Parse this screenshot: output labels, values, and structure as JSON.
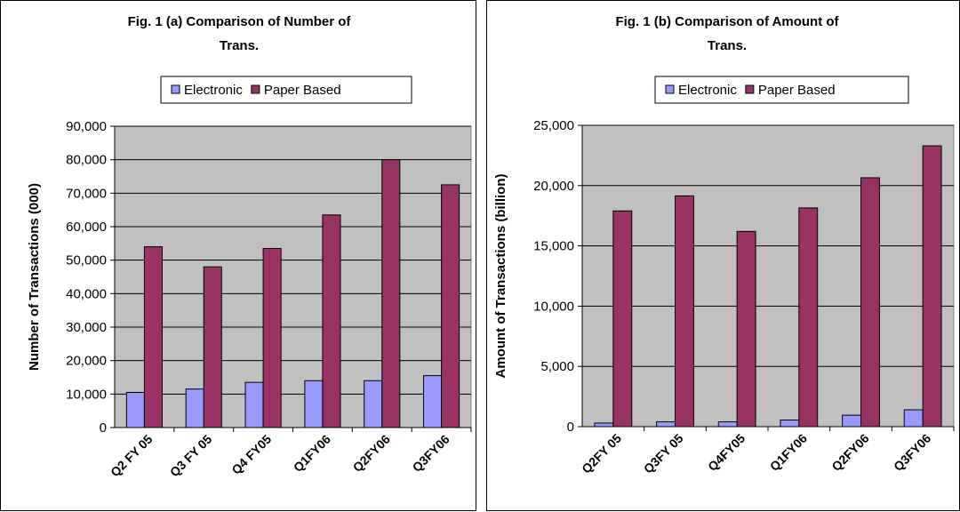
{
  "chart_data": [
    {
      "type": "bar",
      "title_lines": [
        "Fig. 1 (a) Comparison of Number of",
        "Trans."
      ],
      "xlabel": "",
      "ylabel": "Number of Transactions (000)",
      "categories": [
        "Q2 FY 05",
        "Q3 FY 05",
        "Q4 FY05",
        "Q1FY06",
        "Q2FY06",
        "Q3FY06"
      ],
      "series": [
        {
          "name": "Electronic",
          "color": "#9999ff",
          "values": [
            10500,
            11500,
            13500,
            14000,
            14000,
            15500
          ]
        },
        {
          "name": "Paper Based",
          "color": "#993366",
          "values": [
            54000,
            48000,
            53500,
            63500,
            80000,
            72500
          ]
        }
      ],
      "ylim": [
        0,
        90000
      ],
      "yticks": [
        0,
        10000,
        20000,
        30000,
        40000,
        50000,
        60000,
        70000,
        80000,
        90000
      ],
      "ytick_labels": [
        "0",
        "10,000",
        "20,000",
        "30,000",
        "40,000",
        "50,000",
        "60,000",
        "70,000",
        "80,000",
        "90,000"
      ],
      "grid": true,
      "legend": "top",
      "plot_bg": "#c0c0c0"
    },
    {
      "type": "bar",
      "title_lines": [
        "Fig. 1 (b) Comparison of Amount of",
        "Trans."
      ],
      "xlabel": "",
      "ylabel": "Amount of Transactions (billion)",
      "categories": [
        "Q2FY 05",
        "Q3FY 05",
        "Q4FY05",
        "Q1FY06",
        "Q2FY06",
        "Q3FY06"
      ],
      "series": [
        {
          "name": "Electronic",
          "color": "#9999ff",
          "values": [
            300,
            400,
            400,
            550,
            950,
            1400
          ]
        },
        {
          "name": "Paper Based",
          "color": "#993366",
          "values": [
            17900,
            19150,
            16200,
            18150,
            20650,
            23300
          ]
        }
      ],
      "ylim": [
        0,
        25000
      ],
      "yticks": [
        0,
        5000,
        10000,
        15000,
        20000,
        25000
      ],
      "ytick_labels": [
        "0",
        "5,000",
        "10,000",
        "15,000",
        "20,000",
        "25,000"
      ],
      "grid": true,
      "legend": "top",
      "plot_bg": "#c0c0c0"
    }
  ]
}
